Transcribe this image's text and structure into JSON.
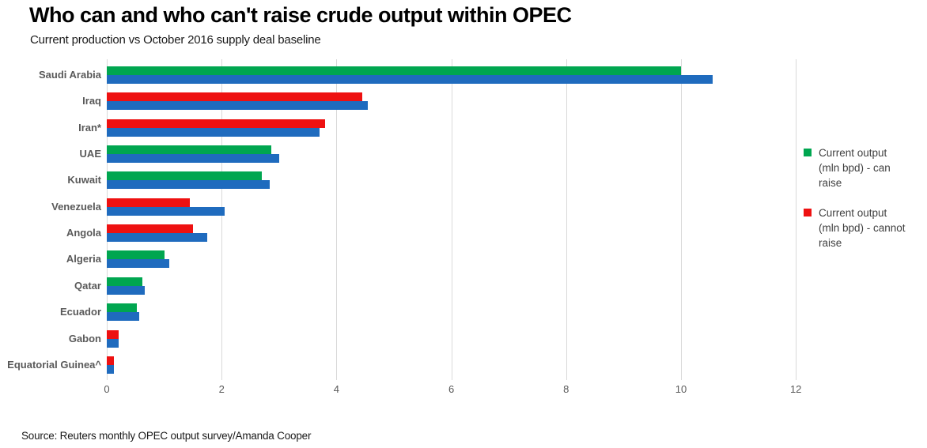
{
  "header": {
    "title": "Who can and who can't raise crude output within OPEC",
    "subtitle": "Current production vs October 2016 supply deal baseline"
  },
  "source_note": "Source: Reuters monthly OPEC output survey/Amanda Cooper",
  "legend": {
    "items": [
      {
        "label": "Current output (mln bpd) - can raise",
        "color": "#00A650"
      },
      {
        "label": "Current output (mln bpd) - cannot raise",
        "color": "#EE1111"
      }
    ]
  },
  "colors": {
    "can_raise": "#00A650",
    "cannot_raise": "#EE1111",
    "baseline": "#1F6BBE",
    "gridline": "#D9D9D9",
    "axis_text": "#595959",
    "category_text": "#595959"
  },
  "chart_data": {
    "type": "bar",
    "orientation": "horizontal",
    "title": "Who can and who can't raise crude output within OPEC",
    "subtitle": "Current production vs October 2016 supply deal baseline",
    "unit": "mln bpd",
    "categories": [
      "Saudi Arabia",
      "Iraq",
      "Iran*",
      "UAE",
      "Kuwait",
      "Venezuela",
      "Angola",
      "Algeria",
      "Qatar",
      "Ecuador",
      "Gabon",
      "Equatorial Guinea^"
    ],
    "series": [
      {
        "name": "Current output (mln bpd)",
        "values": [
          10.0,
          4.45,
          3.8,
          2.87,
          2.7,
          1.45,
          1.5,
          1.0,
          0.62,
          0.53,
          0.2,
          0.13
        ]
      },
      {
        "name": "October 2016 supply deal baseline (mln bpd)",
        "values": [
          10.55,
          4.55,
          3.7,
          3.0,
          2.84,
          2.05,
          1.75,
          1.09,
          0.66,
          0.56,
          0.21,
          0.12
        ]
      }
    ],
    "can_raise": [
      true,
      false,
      false,
      true,
      true,
      false,
      false,
      true,
      true,
      true,
      false,
      false
    ],
    "xlim": [
      0,
      12
    ],
    "xticks": [
      0,
      2,
      4,
      6,
      8,
      10,
      12
    ],
    "grid": "vertical",
    "legend_position": "right"
  }
}
